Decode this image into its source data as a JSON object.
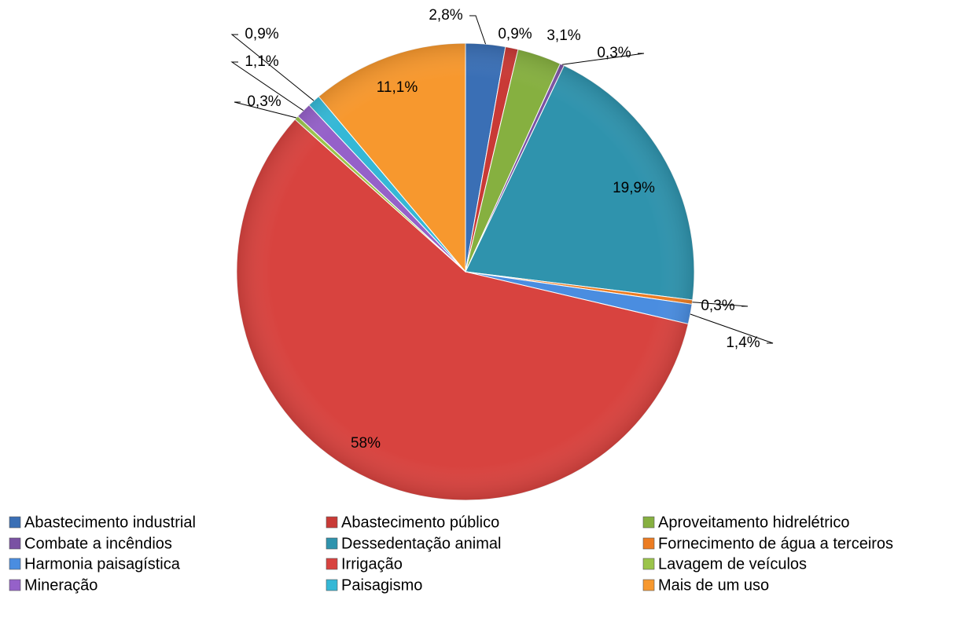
{
  "chart_data": {
    "type": "pie",
    "categories": [
      "Abastecimento industrial",
      "Abastecimento público",
      "Aproveitamento hidrelétrico",
      "Combate a incêndios",
      "Dessedentação animal",
      "Fornecimento de água a terceiros",
      "Harmonia paisagística",
      "Irrigação",
      "Lavagem de veículos",
      "Mineração",
      "Paisagismo",
      "Mais de um uso"
    ],
    "values": [
      2.8,
      0.9,
      3.1,
      0.3,
      19.9,
      0.3,
      1.4,
      58,
      0.3,
      1.1,
      0.9,
      11.1
    ],
    "value_labels": [
      "2,8%",
      "0,9%",
      "3,1%",
      "0,3%",
      "19,9%",
      "0,3%",
      "1,4%",
      "58%",
      "0,3%",
      "1,1%",
      "0,9%",
      "11,1%"
    ],
    "colors": [
      "#3a6fb5",
      "#c93a36",
      "#86b040",
      "#7a52a3",
      "#2f93ad",
      "#ec7c22",
      "#4a8de0",
      "#d8433f",
      "#9bc44a",
      "#9561c9",
      "#35b8d6",
      "#f7982e"
    ],
    "legend": "bottom"
  }
}
